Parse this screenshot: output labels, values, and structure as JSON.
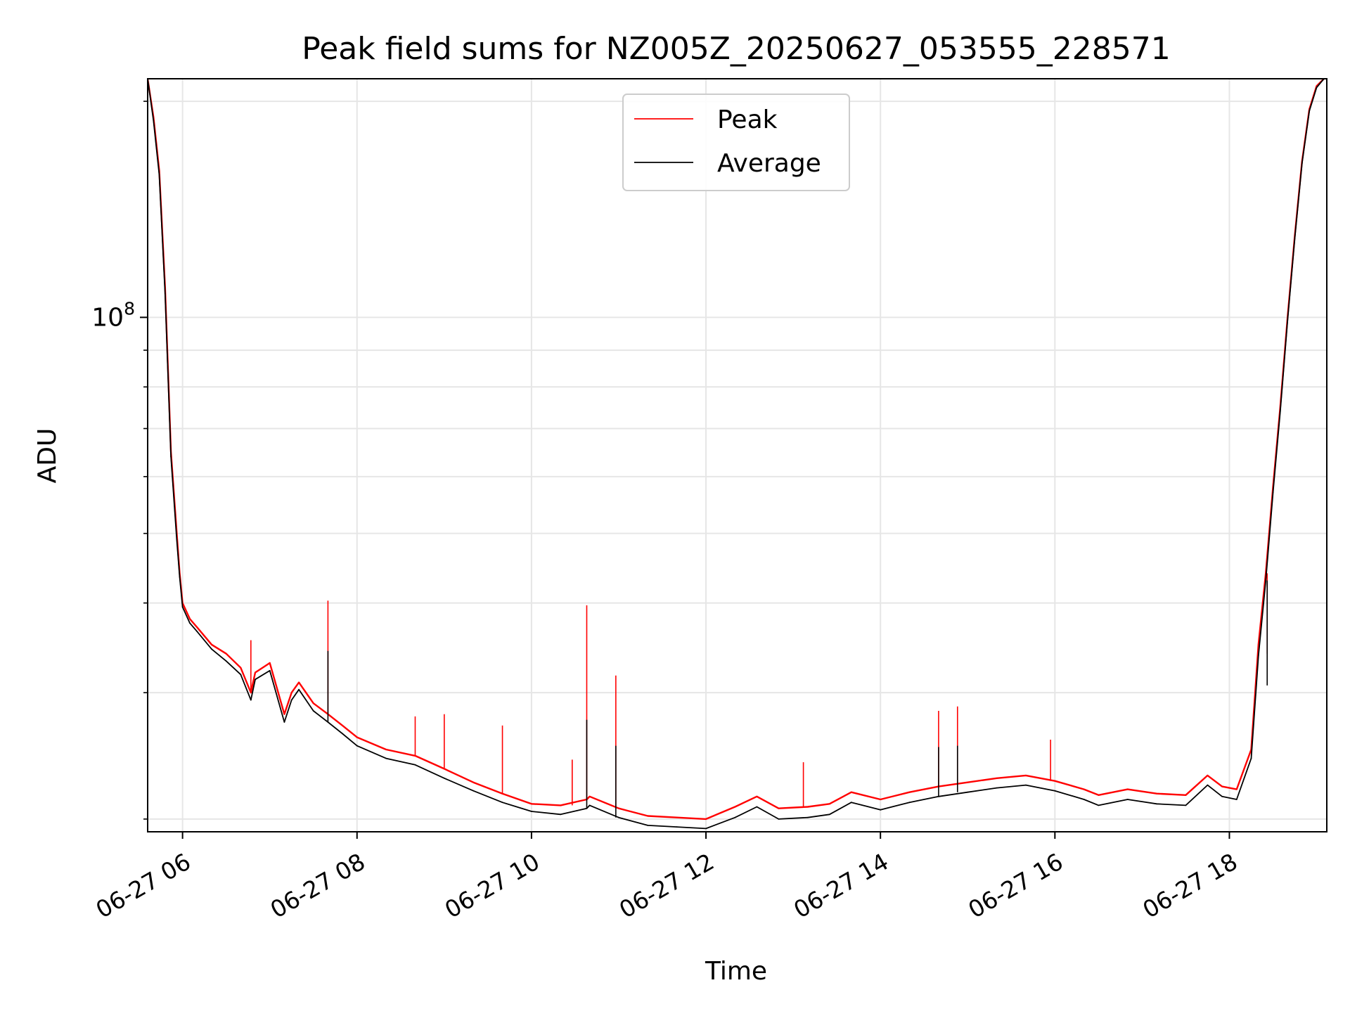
{
  "chart_data": {
    "type": "line",
    "title": "Peak field sums for NZ005Z_20250627_053555_228571",
    "xlabel": "Time",
    "ylabel": "ADU",
    "yscale": "log",
    "ylim": [
      19200000,
      215000000
    ],
    "xlim": [
      "2025-06-27 05:36",
      "2025-06-27 19:07"
    ],
    "grid": true,
    "legend_position": "upper center",
    "x_ticks": [
      {
        "value": "2025-06-27 06:00",
        "label": "06-27 06"
      },
      {
        "value": "2025-06-27 08:00",
        "label": "06-27 08"
      },
      {
        "value": "2025-06-27 10:00",
        "label": "06-27 10"
      },
      {
        "value": "2025-06-27 12:00",
        "label": "06-27 12"
      },
      {
        "value": "2025-06-27 14:00",
        "label": "06-27 14"
      },
      {
        "value": "2025-06-27 16:00",
        "label": "06-27 16"
      },
      {
        "value": "2025-06-27 18:00",
        "label": "06-27 18"
      }
    ],
    "y_ticks_major": [
      {
        "value": 100000000,
        "base": "10",
        "exp": "8"
      }
    ],
    "y_ticks_minor": [
      20000000,
      30000000,
      40000000,
      50000000,
      60000000,
      70000000,
      80000000,
      90000000,
      200000000
    ],
    "series": [
      {
        "name": "Peak",
        "color": "#ff0000",
        "x": [
          "2025-06-27 05:36",
          "2025-06-27 05:40",
          "2025-06-27 05:44",
          "2025-06-27 05:48",
          "2025-06-27 05:52",
          "2025-06-27 05:56",
          "2025-06-27 05:58",
          "2025-06-27 06:00",
          "2025-06-27 06:05",
          "2025-06-27 06:10",
          "2025-06-27 06:20",
          "2025-06-27 06:30",
          "2025-06-27 06:40",
          "2025-06-27 06:47",
          "2025-06-27 06:50",
          "2025-06-27 07:00",
          "2025-06-27 07:10",
          "2025-06-27 07:15",
          "2025-06-27 07:20",
          "2025-06-27 07:30",
          "2025-06-27 07:40",
          "2025-06-27 07:50",
          "2025-06-27 08:00",
          "2025-06-27 08:20",
          "2025-06-27 08:40",
          "2025-06-27 09:00",
          "2025-06-27 09:20",
          "2025-06-27 09:40",
          "2025-06-27 10:00",
          "2025-06-27 10:20",
          "2025-06-27 10:38",
          "2025-06-27 10:40",
          "2025-06-27 11:00",
          "2025-06-27 11:20",
          "2025-06-27 11:40",
          "2025-06-27 12:00",
          "2025-06-27 12:20",
          "2025-06-27 12:35",
          "2025-06-27 12:50",
          "2025-06-27 13:10",
          "2025-06-27 13:25",
          "2025-06-27 13:40",
          "2025-06-27 14:00",
          "2025-06-27 14:20",
          "2025-06-27 14:40",
          "2025-06-27 15:00",
          "2025-06-27 15:20",
          "2025-06-27 15:40",
          "2025-06-27 16:00",
          "2025-06-27 16:20",
          "2025-06-27 16:30",
          "2025-06-27 16:50",
          "2025-06-27 17:10",
          "2025-06-27 17:30",
          "2025-06-27 17:45",
          "2025-06-27 17:55",
          "2025-06-27 18:05",
          "2025-06-27 18:15",
          "2025-06-27 18:20",
          "2025-06-27 18:25",
          "2025-06-27 18:30",
          "2025-06-27 18:35",
          "2025-06-27 18:40",
          "2025-06-27 18:45",
          "2025-06-27 18:50",
          "2025-06-27 18:55",
          "2025-06-27 19:00",
          "2025-06-27 19:05"
        ],
        "y": [
          215000000,
          190000000,
          160000000,
          110000000,
          65000000,
          50000000,
          44000000,
          40000000,
          38000000,
          37000000,
          35000000,
          34000000,
          32500000,
          30000000,
          32000000,
          33000000,
          28000000,
          30000000,
          31000000,
          29000000,
          28000000,
          27000000,
          26000000,
          25000000,
          24500000,
          23500000,
          22500000,
          21700000,
          21000000,
          20900000,
          21300000,
          21500000,
          20700000,
          20200000,
          20100000,
          20000000,
          20800000,
          21500000,
          20700000,
          20800000,
          21000000,
          21800000,
          21300000,
          21800000,
          22200000,
          22500000,
          22800000,
          23000000,
          22600000,
          22000000,
          21600000,
          22000000,
          21700000,
          21600000,
          23000000,
          22200000,
          22000000,
          25000000,
          35000000,
          44000000,
          58000000,
          75000000,
          100000000,
          130000000,
          165000000,
          195000000,
          210000000,
          215000000
        ],
        "spikes": [
          {
            "x": "2025-06-27 06:47",
            "y": 35500000
          },
          {
            "x": "2025-06-27 07:40",
            "y": 40300000
          },
          {
            "x": "2025-06-27 08:40",
            "y": 27800000
          },
          {
            "x": "2025-06-27 09:00",
            "y": 28000000
          },
          {
            "x": "2025-06-27 09:40",
            "y": 27000000
          },
          {
            "x": "2025-06-27 10:28",
            "y": 24200000
          },
          {
            "x": "2025-06-27 10:38",
            "y": 39700000
          },
          {
            "x": "2025-06-27 10:58",
            "y": 31700000
          },
          {
            "x": "2025-06-27 13:07",
            "y": 24000000
          },
          {
            "x": "2025-06-27 14:40",
            "y": 28300000
          },
          {
            "x": "2025-06-27 14:53",
            "y": 28700000
          },
          {
            "x": "2025-06-27 15:57",
            "y": 25800000
          },
          {
            "x": "2025-06-27 18:26",
            "y": 34000000
          }
        ]
      },
      {
        "name": "Average",
        "color": "#000000",
        "x": [
          "2025-06-27 05:36",
          "2025-06-27 05:40",
          "2025-06-27 05:44",
          "2025-06-27 05:48",
          "2025-06-27 05:52",
          "2025-06-27 05:56",
          "2025-06-27 05:58",
          "2025-06-27 06:00",
          "2025-06-27 06:05",
          "2025-06-27 06:10",
          "2025-06-27 06:20",
          "2025-06-27 06:30",
          "2025-06-27 06:40",
          "2025-06-27 06:47",
          "2025-06-27 06:50",
          "2025-06-27 07:00",
          "2025-06-27 07:10",
          "2025-06-27 07:15",
          "2025-06-27 07:20",
          "2025-06-27 07:30",
          "2025-06-27 07:40",
          "2025-06-27 07:50",
          "2025-06-27 08:00",
          "2025-06-27 08:20",
          "2025-06-27 08:40",
          "2025-06-27 09:00",
          "2025-06-27 09:20",
          "2025-06-27 09:40",
          "2025-06-27 10:00",
          "2025-06-27 10:20",
          "2025-06-27 10:38",
          "2025-06-27 10:40",
          "2025-06-27 11:00",
          "2025-06-27 11:20",
          "2025-06-27 11:40",
          "2025-06-27 12:00",
          "2025-06-27 12:20",
          "2025-06-27 12:35",
          "2025-06-27 12:50",
          "2025-06-27 13:10",
          "2025-06-27 13:25",
          "2025-06-27 13:40",
          "2025-06-27 14:00",
          "2025-06-27 14:20",
          "2025-06-27 14:40",
          "2025-06-27 15:00",
          "2025-06-27 15:20",
          "2025-06-27 15:40",
          "2025-06-27 16:00",
          "2025-06-27 16:20",
          "2025-06-27 16:30",
          "2025-06-27 16:50",
          "2025-06-27 17:10",
          "2025-06-27 17:30",
          "2025-06-27 17:45",
          "2025-06-27 17:55",
          "2025-06-27 18:05",
          "2025-06-27 18:15",
          "2025-06-27 18:20",
          "2025-06-27 18:25",
          "2025-06-27 18:30",
          "2025-06-27 18:35",
          "2025-06-27 18:40",
          "2025-06-27 18:45",
          "2025-06-27 18:50",
          "2025-06-27 18:55",
          "2025-06-27 19:00",
          "2025-06-27 19:05"
        ],
        "y": [
          215000000,
          188000000,
          158000000,
          108000000,
          64000000,
          49000000,
          43500000,
          39500000,
          37500000,
          36500000,
          34500000,
          33200000,
          31800000,
          29300000,
          31300000,
          32200000,
          27300000,
          29300000,
          30300000,
          28300000,
          27300000,
          26300000,
          25300000,
          24300000,
          23800000,
          22800000,
          21900000,
          21100000,
          20500000,
          20300000,
          20700000,
          20900000,
          20100000,
          19600000,
          19500000,
          19400000,
          20100000,
          20800000,
          20000000,
          20100000,
          20300000,
          21100000,
          20600000,
          21100000,
          21500000,
          21800000,
          22100000,
          22300000,
          21900000,
          21300000,
          20900000,
          21300000,
          21000000,
          20900000,
          22300000,
          21500000,
          21300000,
          24300000,
          33800000,
          43000000,
          57000000,
          74000000,
          99000000,
          129000000,
          164000000,
          194000000,
          209000000,
          215000000
        ],
        "spikes": [
          {
            "x": "2025-06-27 07:40",
            "y": 34300000
          },
          {
            "x": "2025-06-27 10:38",
            "y": 27500000
          },
          {
            "x": "2025-06-27 10:58",
            "y": 25300000
          },
          {
            "x": "2025-06-27 14:40",
            "y": 25200000
          },
          {
            "x": "2025-06-27 14:53",
            "y": 25300000
          },
          {
            "x": "2025-06-27 18:26",
            "y": 30700000
          }
        ]
      }
    ]
  }
}
